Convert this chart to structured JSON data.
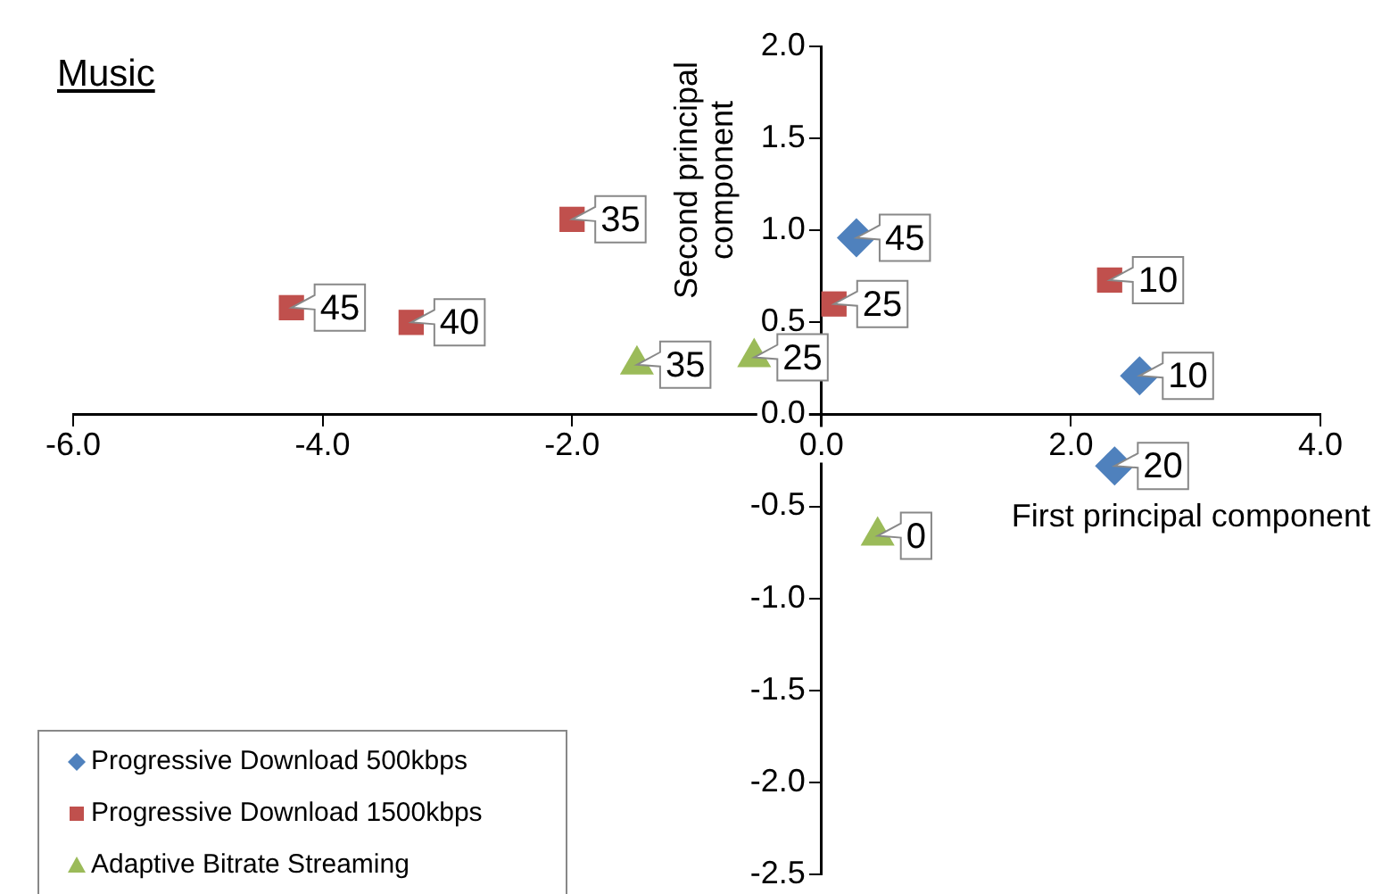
{
  "chart_data": {
    "type": "scatter",
    "title": "Music",
    "xlabel": "First principal component",
    "ylabel": "Second principal component",
    "series": [
      {
        "name": "Progressive Download 500kbps",
        "color": "#4f81bd",
        "marker": "diamond",
        "x": [
          0.28,
          2.55,
          2.35
        ],
        "values": [
          0.96,
          0.21,
          -0.28
        ]
      },
      {
        "name": "Progressive Download 1500kbps",
        "color": "#c0504d",
        "marker": "square",
        "x": [
          -2.0,
          -4.25,
          -3.29,
          0.1,
          2.31
        ],
        "values": [
          1.06,
          0.58,
          0.5,
          0.6,
          0.73
        ]
      },
      {
        "name": "Adaptive Bitrate Streaming",
        "color": "#9bbb59",
        "marker": "triangle",
        "x": [
          -1.48,
          -0.54,
          0.45
        ],
        "values": [
          0.27,
          0.31,
          -0.66
        ]
      }
    ],
    "annotations": [
      {
        "text": "45",
        "x": 0.28,
        "y": 0.96
      },
      {
        "text": "10",
        "x": 2.55,
        "y": 0.21
      },
      {
        "text": "20",
        "x": 2.35,
        "y": -0.28
      },
      {
        "text": "35",
        "x": -2.0,
        "y": 1.06
      },
      {
        "text": "45",
        "x": -4.25,
        "y": 0.58
      },
      {
        "text": "40",
        "x": -3.29,
        "y": 0.5
      },
      {
        "text": "25",
        "x": 0.1,
        "y": 0.6
      },
      {
        "text": "10",
        "x": 2.31,
        "y": 0.73
      },
      {
        "text": "35",
        "x": -1.48,
        "y": 0.27
      },
      {
        "text": "25",
        "x": -0.54,
        "y": 0.31
      },
      {
        "text": "0",
        "x": 0.45,
        "y": -0.66
      }
    ],
    "xlim": [
      -6,
      4
    ],
    "xticks": [
      {
        "value": -6,
        "label": "-6.0"
      },
      {
        "value": -4,
        "label": "-4.0"
      },
      {
        "value": -2,
        "label": "-2.0"
      },
      {
        "value": 0,
        "label": "0.0"
      },
      {
        "value": 2,
        "label": "2.0"
      },
      {
        "value": 4,
        "label": "4.0"
      }
    ],
    "ylim": [
      -2.5,
      2
    ],
    "yticks": [
      {
        "value": -2.5,
        "label": "-2.5"
      },
      {
        "value": -2,
        "label": "-2.0"
      },
      {
        "value": -1.5,
        "label": "-1.5"
      },
      {
        "value": -1,
        "label": "-1.0"
      },
      {
        "value": -0.5,
        "label": "-0.5"
      },
      {
        "value": 0,
        "label": "0.0"
      },
      {
        "value": 0.5,
        "label": "0.5"
      },
      {
        "value": 1,
        "label": "1.0"
      },
      {
        "value": 1.5,
        "label": "1.5"
      },
      {
        "value": 2,
        "label": "2.0"
      }
    ],
    "grid": false,
    "legend": "bottom left"
  }
}
